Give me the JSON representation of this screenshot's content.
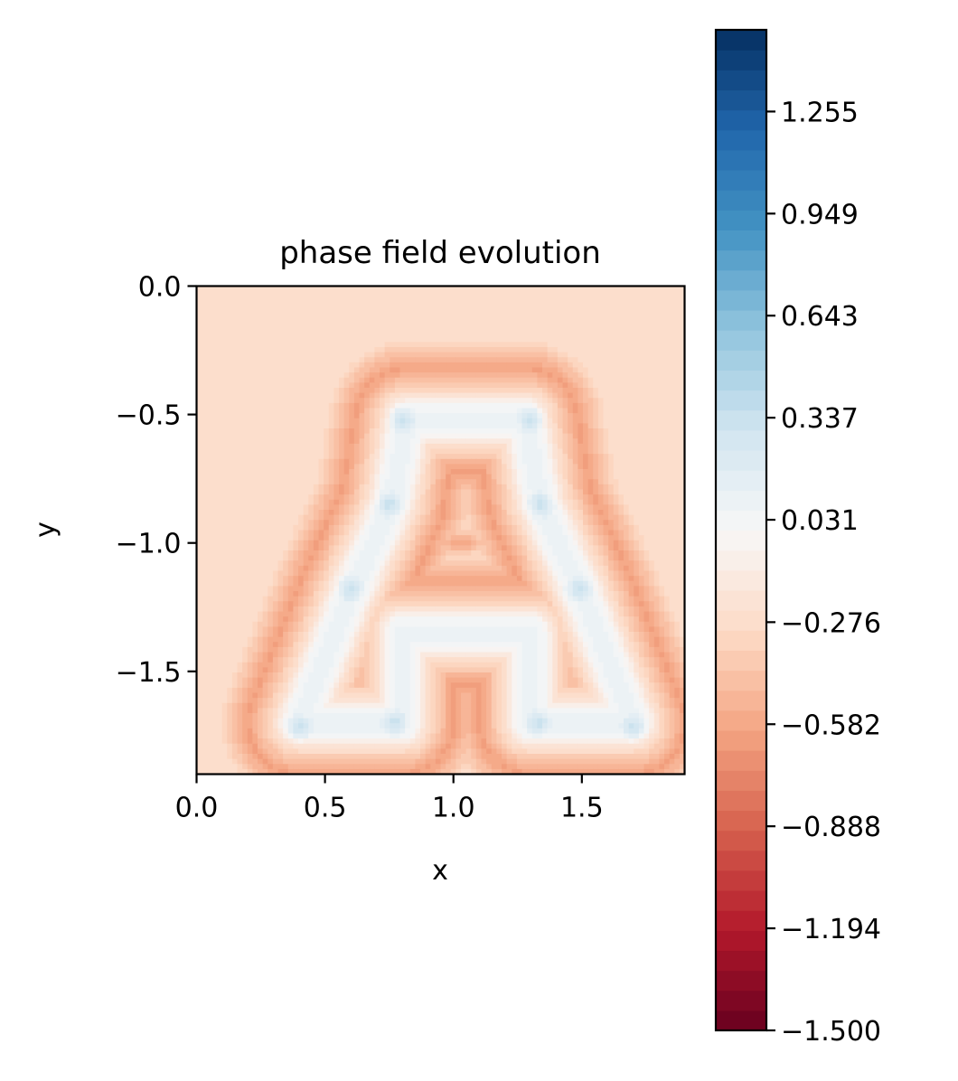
{
  "chart_data": {
    "type": "heatmap",
    "title": "phase field evolution",
    "xlabel": "x",
    "ylabel": "y",
    "xlim": [
      0.0,
      1.9
    ],
    "ylim": [
      -1.9,
      0.0
    ],
    "x_ticks": [
      0.0,
      0.5,
      1.0,
      1.5
    ],
    "x_tick_labels": [
      "0.0",
      "0.5",
      "1.0",
      "1.5"
    ],
    "y_ticks": [
      0.0,
      -0.5,
      -1.0,
      -1.5
    ],
    "y_tick_labels": [
      "0.0",
      "−0.5",
      "−1.0",
      "−1.5"
    ],
    "colormap": "RdBu",
    "background_value": -0.25,
    "colorbar": {
      "range": [
        -1.5,
        1.5
      ],
      "levels": 50,
      "ticks": [
        1.255,
        0.949,
        0.643,
        0.337,
        0.031,
        -0.276,
        -0.582,
        -0.888,
        -1.194,
        -1.5
      ],
      "tick_labels": [
        "1.255",
        "0.949",
        "0.643",
        "0.337",
        "0.031",
        "−0.276",
        "−0.582",
        "−0.888",
        "−1.194",
        "−1.500"
      ]
    },
    "field_shape": {
      "description_letter": "A",
      "segments": [
        [
          [
            0.82,
            -0.52
          ],
          [
            1.28,
            -0.52
          ]
        ],
        [
          [
            0.82,
            -0.52
          ],
          [
            0.76,
            -0.85
          ]
        ],
        [
          [
            1.28,
            -0.52
          ],
          [
            1.34,
            -0.85
          ]
        ],
        [
          [
            0.76,
            -0.85
          ],
          [
            0.6,
            -1.2
          ]
        ],
        [
          [
            1.34,
            -0.85
          ],
          [
            1.5,
            -1.2
          ]
        ],
        [
          [
            0.6,
            -1.2
          ],
          [
            0.4,
            -1.7
          ]
        ],
        [
          [
            1.5,
            -1.2
          ],
          [
            1.7,
            -1.7
          ]
        ],
        [
          [
            0.4,
            -1.7
          ],
          [
            0.8,
            -1.7
          ]
        ],
        [
          [
            1.3,
            -1.7
          ],
          [
            1.7,
            -1.7
          ]
        ],
        [
          [
            0.8,
            -1.7
          ],
          [
            0.8,
            -1.35
          ]
        ],
        [
          [
            1.3,
            -1.7
          ],
          [
            1.3,
            -1.35
          ]
        ],
        [
          [
            0.8,
            -1.35
          ],
          [
            1.3,
            -1.35
          ]
        ]
      ],
      "peak_points": [
        [
          0.8,
          -0.52
        ],
        [
          1.3,
          -0.52
        ],
        [
          0.75,
          -0.85
        ],
        [
          1.34,
          -0.85
        ],
        [
          0.6,
          -1.18
        ],
        [
          1.49,
          -1.18
        ],
        [
          0.4,
          -1.72
        ],
        [
          0.77,
          -1.7
        ],
        [
          1.33,
          -1.7
        ],
        [
          1.7,
          -1.72
        ]
      ],
      "inner_value": 0.1,
      "trough_value": -0.62,
      "center_dip": [
        1.03,
        -1.0
      ]
    }
  }
}
